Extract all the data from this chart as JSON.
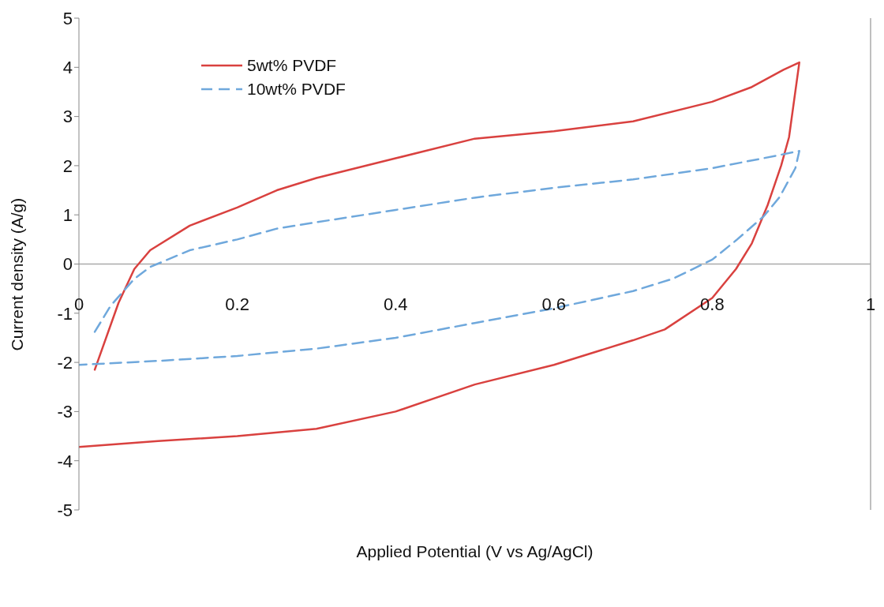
{
  "chart_data": {
    "type": "line",
    "xlabel": "Applied Potential (V vs Ag/AgCl)",
    "ylabel": "Current density (A/g)",
    "xlim": [
      0,
      1
    ],
    "xticks": [
      0,
      0.2,
      0.4,
      0.6,
      0.8,
      1
    ],
    "ylim": [
      -5,
      5
    ],
    "yticks": [
      -5,
      -4,
      -3,
      -2,
      -1,
      0,
      1,
      2,
      3,
      4,
      5
    ],
    "legend": "top left",
    "grid": false,
    "marker": "none",
    "series": [
      {
        "name": "5wt% PVDF",
        "color": "#d9413f",
        "line_style": "solid",
        "x": [
          0.02,
          0.05,
          0.07,
          0.09,
          0.14,
          0.2,
          0.25,
          0.3,
          0.4,
          0.5,
          0.6,
          0.7,
          0.8,
          0.85,
          0.89,
          0.91,
          0.897,
          0.887,
          0.87,
          0.85,
          0.83,
          0.8,
          0.74,
          0.7,
          0.6,
          0.5,
          0.4,
          0.3,
          0.2,
          0.1,
          0.0
        ],
        "values": [
          -2.15,
          -0.79,
          -0.1,
          0.28,
          0.78,
          1.15,
          1.5,
          1.75,
          2.15,
          2.55,
          2.7,
          2.9,
          3.3,
          3.6,
          3.95,
          4.1,
          2.58,
          2.0,
          1.2,
          0.42,
          -0.1,
          -0.69,
          -1.33,
          -1.55,
          -2.05,
          -2.45,
          -3.0,
          -3.35,
          -3.5,
          -3.6,
          -3.72
        ]
      },
      {
        "name": "10wt% PVDF",
        "color": "#6fa8dc",
        "line_style": "dashed",
        "x": [
          0.02,
          0.04,
          0.07,
          0.09,
          0.14,
          0.2,
          0.25,
          0.3,
          0.4,
          0.5,
          0.6,
          0.7,
          0.8,
          0.88,
          0.91,
          0.905,
          0.885,
          0.865,
          0.83,
          0.8,
          0.75,
          0.7,
          0.6,
          0.5,
          0.4,
          0.3,
          0.2,
          0.1,
          0.0
        ],
        "values": [
          -1.38,
          -0.85,
          -0.3,
          -0.06,
          0.28,
          0.5,
          0.72,
          0.85,
          1.1,
          1.35,
          1.55,
          1.72,
          1.95,
          2.2,
          2.3,
          1.95,
          1.36,
          0.97,
          0.48,
          0.09,
          -0.3,
          -0.55,
          -0.9,
          -1.2,
          -1.5,
          -1.72,
          -1.87,
          -1.97,
          -2.05
        ]
      }
    ]
  }
}
